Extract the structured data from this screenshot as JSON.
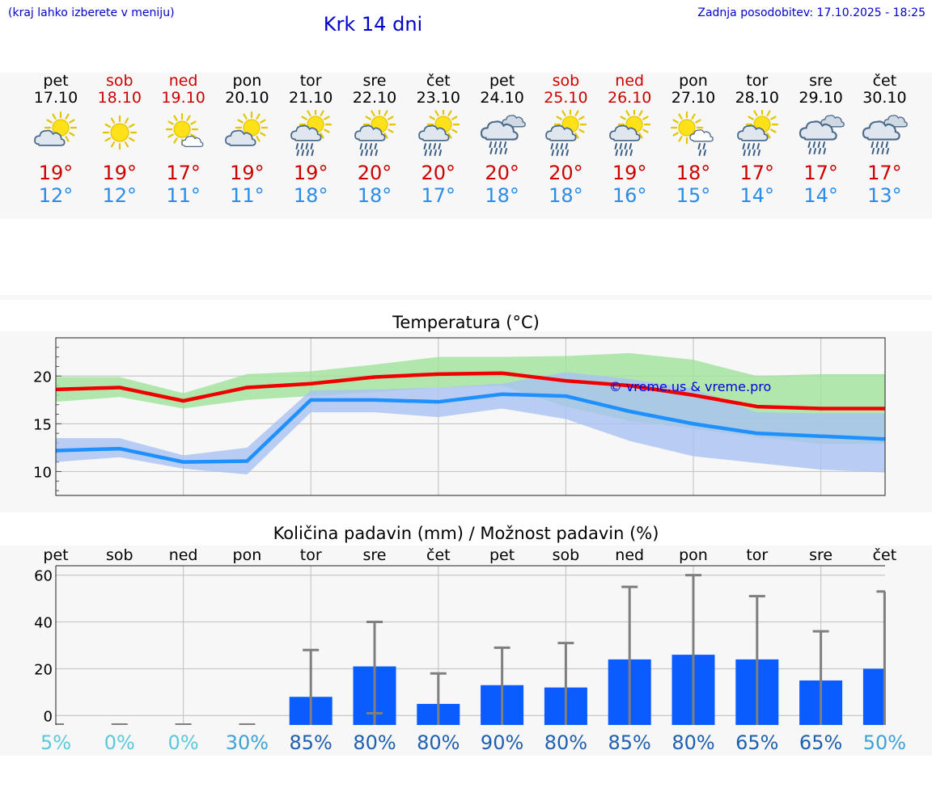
{
  "header": {
    "note": "(kraj lahko izberete v meniju)",
    "title": "Krk 14 dni",
    "updated": "Zadnja posodobitev: 17.10.2025 - 18:25"
  },
  "colors": {
    "link_blue": "#0000cc",
    "max_red": "#cc0000",
    "min_blue": "#2a8ce8",
    "max_line": "#ee0000",
    "max_band": "#9fe29a",
    "min_line": "#1e90ff",
    "min_band": "#a9c2f3",
    "bar": "#0b5cff",
    "err": "#7f7f7f"
  },
  "days": [
    {
      "name": "pet",
      "date": "17.10",
      "icon": "sun-cloud-icon",
      "max": "19°",
      "min": "12°",
      "weekend": false
    },
    {
      "name": "sob",
      "date": "18.10",
      "icon": "sun-icon",
      "max": "19°",
      "min": "12°",
      "weekend": true
    },
    {
      "name": "ned",
      "date": "19.10",
      "icon": "sun-small-cloud-icon",
      "max": "17°",
      "min": "11°",
      "weekend": true
    },
    {
      "name": "pon",
      "date": "20.10",
      "icon": "sun-cloud-icon",
      "max": "19°",
      "min": "11°",
      "weekend": false
    },
    {
      "name": "tor",
      "date": "21.10",
      "icon": "sun-cloud-rain-icon",
      "max": "19°",
      "min": "18°",
      "weekend": false
    },
    {
      "name": "sre",
      "date": "22.10",
      "icon": "sun-cloud-rain-icon",
      "max": "20°",
      "min": "18°",
      "weekend": false
    },
    {
      "name": "čet",
      "date": "23.10",
      "icon": "sun-cloud-rain-icon",
      "max": "20°",
      "min": "17°",
      "weekend": false
    },
    {
      "name": "pet",
      "date": "24.10",
      "icon": "cloud-rain-icon",
      "max": "20°",
      "min": "18°",
      "weekend": false
    },
    {
      "name": "sob",
      "date": "25.10",
      "icon": "sun-cloud-rain-icon",
      "max": "20°",
      "min": "18°",
      "weekend": true
    },
    {
      "name": "ned",
      "date": "26.10",
      "icon": "sun-cloud-rain-icon",
      "max": "19°",
      "min": "16°",
      "weekend": true
    },
    {
      "name": "pon",
      "date": "27.10",
      "icon": "sun-cloud-light-rain-icon",
      "max": "18°",
      "min": "15°",
      "weekend": false
    },
    {
      "name": "tor",
      "date": "28.10",
      "icon": "sun-cloud-rain-icon",
      "max": "17°",
      "min": "14°",
      "weekend": false
    },
    {
      "name": "sre",
      "date": "29.10",
      "icon": "cloud-rain-icon",
      "max": "17°",
      "min": "14°",
      "weekend": false
    },
    {
      "name": "čet",
      "date": "30.10",
      "icon": "cloud-rain-icon",
      "max": "17°",
      "min": "13°",
      "weekend": false
    }
  ],
  "chart_data": [
    {
      "type": "line",
      "title": "Temperatura (°C)",
      "x": [
        1,
        2,
        3,
        4,
        5,
        6,
        7,
        8,
        9,
        10,
        11,
        12,
        13,
        14
      ],
      "ylim": [
        7.5,
        24
      ],
      "yticks": [
        10,
        15,
        20
      ],
      "grid": true,
      "series": [
        {
          "name": "max",
          "values": [
            18.6,
            18.8,
            17.4,
            18.8,
            19.2,
            19.9,
            20.2,
            20.3,
            19.5,
            19.0,
            18.0,
            16.8,
            16.6,
            16.6
          ],
          "band_low": [
            17.3,
            17.8,
            16.6,
            17.5,
            17.9,
            18.3,
            18.8,
            19.0,
            16.8,
            15.3,
            14.5,
            13.6,
            12.9,
            12.9
          ],
          "band_high": [
            19.9,
            19.9,
            18.2,
            20.2,
            20.5,
            21.2,
            22.0,
            22.0,
            22.1,
            22.4,
            21.7,
            20.0,
            20.2,
            20.2
          ]
        },
        {
          "name": "min",
          "values": [
            12.2,
            12.4,
            11.0,
            11.1,
            17.5,
            17.5,
            17.3,
            18.1,
            17.9,
            16.3,
            15.0,
            14.0,
            13.7,
            13.4
          ],
          "band_low": [
            11.0,
            11.5,
            10.3,
            9.7,
            16.2,
            16.2,
            15.7,
            16.6,
            15.5,
            13.2,
            11.6,
            10.9,
            10.2,
            9.9
          ],
          "band_high": [
            13.5,
            13.5,
            11.7,
            12.5,
            18.5,
            18.6,
            18.8,
            19.2,
            20.4,
            19.7,
            18.7,
            16.2,
            16.1,
            16.1
          ]
        }
      ],
      "watermark": "© vreme.us & vreme.pro"
    },
    {
      "type": "bar",
      "title": "Količina padavin (mm) / Možnost padavin (%)",
      "categories": [
        "pet",
        "sob",
        "ned",
        "pon",
        "tor",
        "sre",
        "čet",
        "pet",
        "sob",
        "ned",
        "pon",
        "tor",
        "sre",
        "čet"
      ],
      "values": [
        0,
        0,
        0,
        0,
        8,
        21,
        5,
        13,
        12,
        24,
        26,
        24,
        15,
        20
      ],
      "err_low": [
        0,
        0,
        0,
        0,
        0,
        1,
        0,
        0,
        0,
        0,
        0,
        0,
        0,
        0
      ],
      "err_high": [
        0,
        0,
        0,
        0,
        28,
        40,
        18,
        29,
        31,
        55,
        60,
        51,
        36,
        53
      ],
      "ylim": [
        -4,
        64
      ],
      "yticks": [
        0,
        20,
        40,
        60
      ],
      "probability": [
        "5%",
        "0%",
        "0%",
        "30%",
        "85%",
        "80%",
        "80%",
        "90%",
        "80%",
        "85%",
        "80%",
        "65%",
        "65%",
        "50%"
      ],
      "probability_colors": [
        "#5bc8dc",
        "#5bc8dc",
        "#5bc8dc",
        "#3fa2d6",
        "#1e5fb0",
        "#1e5fb0",
        "#1e5fb0",
        "#1e5fb0",
        "#1e5fb0",
        "#1e5fb0",
        "#1e5fb0",
        "#1e5fb0",
        "#1e5fb0",
        "#3fa2d6"
      ]
    }
  ]
}
